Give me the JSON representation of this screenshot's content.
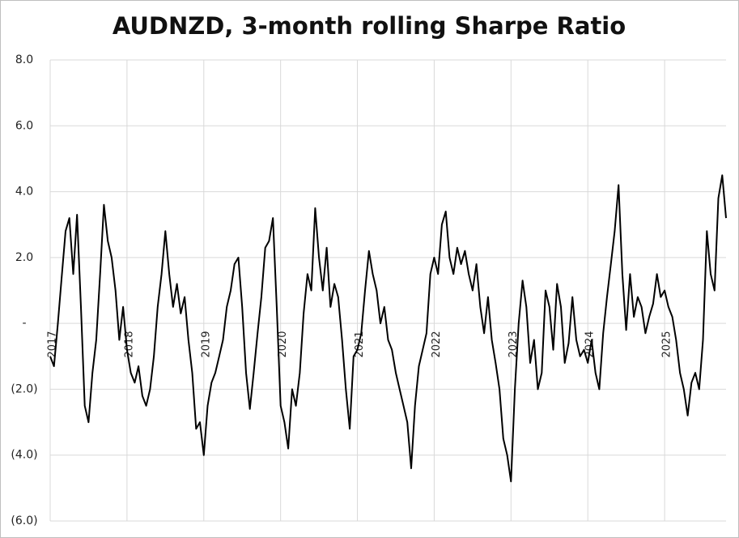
{
  "chart_data": {
    "type": "line",
    "title": "AUDNZD, 3-month rolling Sharpe Ratio",
    "x": [
      2017,
      2017.05,
      2017.1,
      2017.15,
      2017.2,
      2017.25,
      2017.3,
      2017.35,
      2017.4,
      2017.45,
      2017.5,
      2017.55,
      2017.6,
      2017.65,
      2017.7,
      2017.75,
      2017.8,
      2017.85,
      2017.9,
      2017.95,
      2018,
      2018.05,
      2018.1,
      2018.15,
      2018.2,
      2018.25,
      2018.3,
      2018.35,
      2018.4,
      2018.45,
      2018.5,
      2018.55,
      2018.6,
      2018.65,
      2018.7,
      2018.75,
      2018.8,
      2018.85,
      2018.9,
      2018.95,
      2019,
      2019.05,
      2019.1,
      2019.15,
      2019.2,
      2019.25,
      2019.3,
      2019.35,
      2019.4,
      2019.45,
      2019.5,
      2019.55,
      2019.6,
      2019.65,
      2019.7,
      2019.75,
      2019.8,
      2019.85,
      2019.9,
      2019.95,
      2020,
      2020.05,
      2020.1,
      2020.15,
      2020.2,
      2020.25,
      2020.3,
      2020.35,
      2020.4,
      2020.45,
      2020.5,
      2020.55,
      2020.6,
      2020.65,
      2020.7,
      2020.75,
      2020.8,
      2020.85,
      2020.9,
      2020.95,
      2021,
      2021.05,
      2021.1,
      2021.15,
      2021.2,
      2021.25,
      2021.3,
      2021.35,
      2021.4,
      2021.45,
      2021.5,
      2021.55,
      2021.6,
      2021.65,
      2021.7,
      2021.75,
      2021.8,
      2021.85,
      2021.9,
      2021.95,
      2022,
      2022.05,
      2022.1,
      2022.15,
      2022.2,
      2022.25,
      2022.3,
      2022.35,
      2022.4,
      2022.45,
      2022.5,
      2022.55,
      2022.6,
      2022.65,
      2022.7,
      2022.75,
      2022.8,
      2022.85,
      2022.9,
      2022.95,
      2023,
      2023.05,
      2023.1,
      2023.15,
      2023.2,
      2023.25,
      2023.3,
      2023.35,
      2023.4,
      2023.45,
      2023.5,
      2023.55,
      2023.6,
      2023.65,
      2023.7,
      2023.75,
      2023.8,
      2023.85,
      2023.9,
      2023.95,
      2024,
      2024.05,
      2024.1,
      2024.15,
      2024.2,
      2024.25,
      2024.3,
      2024.35,
      2024.4,
      2024.45,
      2024.5,
      2024.55,
      2024.6,
      2024.65,
      2024.7,
      2024.75,
      2024.8,
      2024.85,
      2024.9,
      2024.95,
      2025,
      2025.05,
      2025.1,
      2025.15,
      2025.2,
      2025.25,
      2025.3,
      2025.35,
      2025.4,
      2025.45,
      2025.5,
      2025.55,
      2025.6,
      2025.65,
      2025.7,
      2025.75,
      2025.8
    ],
    "series": [
      {
        "name": "AUDNZD",
        "color": "#000000",
        "values": [
          -1.0,
          -1.3,
          0.0,
          1.4,
          2.8,
          3.2,
          1.5,
          3.3,
          0.5,
          -2.5,
          -3.0,
          -1.5,
          -0.5,
          1.5,
          3.6,
          2.5,
          2.0,
          1.0,
          -0.5,
          0.5,
          -0.8,
          -1.5,
          -1.8,
          -1.3,
          -2.2,
          -2.5,
          -2.0,
          -1.0,
          0.5,
          1.5,
          2.8,
          1.5,
          0.5,
          1.2,
          0.3,
          0.8,
          -0.5,
          -1.5,
          -3.2,
          -3.0,
          -4.0,
          -2.5,
          -1.8,
          -1.5,
          -1.0,
          -0.5,
          0.5,
          1.0,
          1.8,
          2.0,
          0.5,
          -1.5,
          -2.6,
          -1.5,
          -0.3,
          0.8,
          2.3,
          2.5,
          3.2,
          0.5,
          -2.5,
          -3.0,
          -3.8,
          -2.0,
          -2.5,
          -1.5,
          0.3,
          1.5,
          1.0,
          3.5,
          2.0,
          1.0,
          2.3,
          0.5,
          1.2,
          0.8,
          -0.5,
          -2.0,
          -3.2,
          -1.0,
          -0.8,
          -0.3,
          1.0,
          2.2,
          1.5,
          1.0,
          0.0,
          0.5,
          -0.5,
          -0.8,
          -1.5,
          -2.0,
          -2.5,
          -3.0,
          -4.4,
          -2.5,
          -1.3,
          -0.8,
          -0.3,
          1.5,
          2.0,
          1.5,
          3.0,
          3.4,
          2.0,
          1.5,
          2.3,
          1.8,
          2.2,
          1.5,
          1.0,
          1.8,
          0.5,
          -0.3,
          0.8,
          -0.5,
          -1.2,
          -2.0,
          -3.5,
          -4.0,
          -4.8,
          -2.0,
          0.0,
          1.3,
          0.5,
          -1.2,
          -0.5,
          -2.0,
          -1.5,
          1.0,
          0.5,
          -0.8,
          1.2,
          0.5,
          -1.2,
          -0.6,
          0.8,
          -0.5,
          -1.0,
          -0.8,
          -1.2,
          -0.5,
          -1.5,
          -2.0,
          -0.3,
          0.8,
          1.8,
          2.8,
          4.2,
          1.5,
          -0.2,
          1.5,
          0.2,
          0.8,
          0.5,
          -0.3,
          0.2,
          0.6,
          1.5,
          0.8,
          1.0,
          0.5,
          0.2,
          -0.5,
          -1.5,
          -2.0,
          -2.8,
          -1.8,
          -1.5,
          -2.0,
          -0.5,
          2.8,
          1.5,
          1.0,
          3.8,
          4.5,
          3.2
        ]
      }
    ],
    "xlim": [
      2017,
      2025.8
    ],
    "xticks": [
      2017,
      2018,
      2019,
      2020,
      2021,
      2022,
      2023,
      2024,
      2025
    ],
    "ylim": [
      -6,
      8
    ],
    "yticks": [
      {
        "value": -6,
        "label": "(6.0)"
      },
      {
        "value": -4,
        "label": "(4.0)"
      },
      {
        "value": -2,
        "label": "(2.0)"
      },
      {
        "value": 0,
        "label": "-"
      },
      {
        "value": 2,
        "label": "2.0"
      },
      {
        "value": 4,
        "label": "4.0"
      },
      {
        "value": 6,
        "label": "6.0"
      },
      {
        "value": 8,
        "label": "8.0"
      }
    ],
    "grid": true
  }
}
